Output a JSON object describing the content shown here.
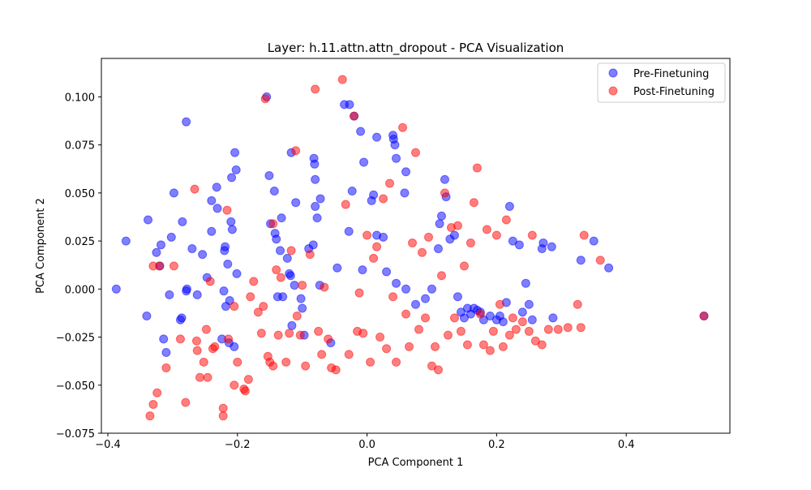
{
  "window": {
    "title": "Layer: h.11.attn.attn_dropout - PCA Visualization"
  },
  "chart_data": {
    "type": "scatter",
    "title": "Layer: h.11.attn.attn_dropout - PCA Visualization",
    "xlabel": "PCA Component 1",
    "ylabel": "PCA Component 2",
    "xlim": [
      -0.41,
      0.56
    ],
    "ylim": [
      -0.075,
      0.12
    ],
    "xticks": [
      -0.4,
      -0.2,
      0.0,
      0.2,
      0.4
    ],
    "xtick_labels": [
      "−0.4",
      "−0.2",
      "0.0",
      "0.2",
      "0.4"
    ],
    "yticks": [
      -0.075,
      -0.05,
      -0.025,
      0.0,
      0.025,
      0.05,
      0.075,
      0.1
    ],
    "ytick_labels": [
      "−0.075",
      "−0.050",
      "−0.025",
      "0.000",
      "0.025",
      "0.050",
      "0.075",
      "0.100"
    ],
    "grid": false,
    "legend_position": "top-right",
    "series": [
      {
        "name": "Pre-Finetuning",
        "color": "#0000ff",
        "alpha": 0.5,
        "points": [
          [
            -0.387,
            0.0
          ],
          [
            -0.372,
            0.025
          ],
          [
            -0.34,
            -0.014
          ],
          [
            -0.338,
            0.036
          ],
          [
            -0.325,
            0.019
          ],
          [
            -0.32,
            0.012
          ],
          [
            -0.318,
            0.023
          ],
          [
            -0.314,
            -0.026
          ],
          [
            -0.31,
            -0.033
          ],
          [
            -0.302,
            0.027
          ],
          [
            -0.298,
            0.05
          ],
          [
            -0.305,
            -0.003
          ],
          [
            -0.288,
            -0.016
          ],
          [
            -0.286,
            -0.015
          ],
          [
            -0.285,
            0.035
          ],
          [
            -0.279,
            0.087
          ],
          [
            -0.279,
            -0.001
          ],
          [
            -0.278,
            0.0
          ],
          [
            -0.27,
            0.021
          ],
          [
            -0.262,
            -0.003
          ],
          [
            -0.254,
            0.018
          ],
          [
            -0.247,
            0.006
          ],
          [
            -0.24,
            0.03
          ],
          [
            -0.24,
            0.046
          ],
          [
            -0.232,
            0.053
          ],
          [
            -0.231,
            0.042
          ],
          [
            -0.221,
            -0.001
          ],
          [
            -0.22,
            0.02
          ],
          [
            -0.219,
            0.022
          ],
          [
            -0.218,
            -0.009
          ],
          [
            -0.21,
            0.035
          ],
          [
            -0.209,
            0.058
          ],
          [
            -0.215,
            0.013
          ],
          [
            -0.212,
            -0.006
          ],
          [
            -0.204,
            0.071
          ],
          [
            -0.202,
            0.062
          ],
          [
            -0.201,
            0.008
          ],
          [
            -0.208,
            0.031
          ],
          [
            -0.224,
            -0.026
          ],
          [
            -0.213,
            -0.028
          ],
          [
            -0.205,
            -0.03
          ],
          [
            -0.155,
            0.1
          ],
          [
            -0.151,
            0.059
          ],
          [
            -0.149,
            0.034
          ],
          [
            -0.143,
            0.051
          ],
          [
            -0.142,
            0.029
          ],
          [
            -0.14,
            0.026
          ],
          [
            -0.134,
            0.02
          ],
          [
            -0.138,
            -0.004
          ],
          [
            -0.132,
            0.037
          ],
          [
            -0.13,
            -0.004
          ],
          [
            -0.123,
            0.016
          ],
          [
            -0.117,
            0.071
          ],
          [
            -0.12,
            0.008
          ],
          [
            -0.118,
            0.007
          ],
          [
            -0.116,
            -0.019
          ],
          [
            -0.11,
            0.045
          ],
          [
            -0.112,
            0.002
          ],
          [
            -0.102,
            -0.005
          ],
          [
            -0.1,
            -0.01
          ],
          [
            -0.097,
            -0.024
          ],
          [
            -0.09,
            0.021
          ],
          [
            -0.083,
            0.023
          ],
          [
            -0.082,
            0.068
          ],
          [
            -0.081,
            0.065
          ],
          [
            -0.08,
            0.057
          ],
          [
            -0.08,
            0.043
          ],
          [
            -0.077,
            0.037
          ],
          [
            -0.072,
            0.047
          ],
          [
            -0.073,
            0.002
          ],
          [
            -0.056,
            -0.028
          ],
          [
            -0.046,
            0.011
          ],
          [
            -0.035,
            0.096
          ],
          [
            -0.027,
            0.096
          ],
          [
            -0.02,
            0.09
          ],
          [
            -0.023,
            0.051
          ],
          [
            -0.028,
            0.03
          ],
          [
            -0.01,
            0.082
          ],
          [
            -0.005,
            0.066
          ],
          [
            -0.007,
            0.01
          ],
          [
            0.007,
            0.046
          ],
          [
            0.01,
            0.049
          ],
          [
            0.015,
            0.079
          ],
          [
            0.04,
            0.08
          ],
          [
            0.041,
            0.078
          ],
          [
            0.043,
            0.075
          ],
          [
            0.045,
            0.068
          ],
          [
            0.06,
            0.061
          ],
          [
            0.058,
            0.05
          ],
          [
            0.025,
            0.027
          ],
          [
            0.015,
            0.028
          ],
          [
            0.03,
            0.009
          ],
          [
            0.045,
            0.003
          ],
          [
            0.06,
            0.0
          ],
          [
            0.075,
            -0.008
          ],
          [
            0.09,
            -0.005
          ],
          [
            0.1,
            0.0
          ],
          [
            0.11,
            0.021
          ],
          [
            0.112,
            0.034
          ],
          [
            0.115,
            0.038
          ],
          [
            0.12,
            0.057
          ],
          [
            0.122,
            0.048
          ],
          [
            0.128,
            0.026
          ],
          [
            0.135,
            0.028
          ],
          [
            0.14,
            -0.004
          ],
          [
            0.145,
            -0.012
          ],
          [
            0.15,
            -0.015
          ],
          [
            0.155,
            -0.01
          ],
          [
            0.16,
            -0.013
          ],
          [
            0.165,
            -0.01
          ],
          [
            0.17,
            -0.011
          ],
          [
            0.175,
            -0.012
          ],
          [
            0.18,
            -0.016
          ],
          [
            0.19,
            -0.014
          ],
          [
            0.2,
            -0.016
          ],
          [
            0.205,
            -0.014
          ],
          [
            0.21,
            -0.017
          ],
          [
            0.215,
            -0.007
          ],
          [
            0.22,
            0.043
          ],
          [
            0.225,
            0.025
          ],
          [
            0.235,
            0.023
          ],
          [
            0.24,
            -0.012
          ],
          [
            0.245,
            0.003
          ],
          [
            0.25,
            -0.008
          ],
          [
            0.255,
            -0.016
          ],
          [
            0.27,
            0.021
          ],
          [
            0.272,
            0.024
          ],
          [
            0.285,
            0.022
          ],
          [
            0.287,
            -0.015
          ],
          [
            0.33,
            0.015
          ],
          [
            0.35,
            0.025
          ],
          [
            0.373,
            0.011
          ],
          [
            0.52,
            -0.014
          ]
        ]
      },
      {
        "name": "Post-Finetuning",
        "color": "#ff0000",
        "alpha": 0.5,
        "points": [
          [
            -0.335,
            -0.066
          ],
          [
            -0.33,
            -0.06
          ],
          [
            -0.324,
            -0.054
          ],
          [
            -0.32,
            0.012
          ],
          [
            -0.33,
            0.012
          ],
          [
            -0.31,
            -0.041
          ],
          [
            -0.298,
            0.012
          ],
          [
            -0.288,
            -0.026
          ],
          [
            -0.28,
            -0.059
          ],
          [
            -0.266,
            0.052
          ],
          [
            -0.263,
            -0.027
          ],
          [
            -0.262,
            -0.032
          ],
          [
            -0.258,
            -0.046
          ],
          [
            -0.252,
            -0.038
          ],
          [
            -0.248,
            -0.021
          ],
          [
            -0.246,
            -0.046
          ],
          [
            -0.242,
            0.004
          ],
          [
            -0.238,
            -0.031
          ],
          [
            -0.235,
            -0.03
          ],
          [
            -0.222,
            -0.062
          ],
          [
            -0.222,
            -0.066
          ],
          [
            -0.216,
            0.041
          ],
          [
            -0.214,
            -0.026
          ],
          [
            -0.205,
            -0.009
          ],
          [
            -0.205,
            -0.05
          ],
          [
            -0.2,
            -0.038
          ],
          [
            -0.19,
            -0.052
          ],
          [
            -0.188,
            -0.053
          ],
          [
            -0.183,
            -0.047
          ],
          [
            -0.18,
            -0.004
          ],
          [
            -0.175,
            0.004
          ],
          [
            -0.168,
            -0.012
          ],
          [
            -0.163,
            -0.023
          ],
          [
            -0.16,
            -0.009
          ],
          [
            -0.157,
            0.099
          ],
          [
            -0.153,
            -0.035
          ],
          [
            -0.15,
            -0.038
          ],
          [
            -0.145,
            0.034
          ],
          [
            -0.145,
            -0.04
          ],
          [
            -0.14,
            0.01
          ],
          [
            -0.137,
            -0.024
          ],
          [
            -0.133,
            0.006
          ],
          [
            -0.125,
            -0.038
          ],
          [
            -0.12,
            -0.023
          ],
          [
            -0.117,
            0.02
          ],
          [
            -0.11,
            0.072
          ],
          [
            -0.108,
            -0.014
          ],
          [
            -0.103,
            -0.024
          ],
          [
            -0.1,
            0.002
          ],
          [
            -0.095,
            -0.04
          ],
          [
            -0.088,
            0.018
          ],
          [
            -0.08,
            0.104
          ],
          [
            -0.075,
            -0.022
          ],
          [
            -0.07,
            -0.034
          ],
          [
            -0.066,
            0.001
          ],
          [
            -0.06,
            -0.026
          ],
          [
            -0.055,
            -0.041
          ],
          [
            -0.048,
            -0.042
          ],
          [
            -0.038,
            0.109
          ],
          [
            -0.033,
            0.044
          ],
          [
            -0.028,
            -0.034
          ],
          [
            -0.02,
            0.09
          ],
          [
            -0.015,
            -0.022
          ],
          [
            -0.012,
            -0.002
          ],
          [
            -0.006,
            -0.023
          ],
          [
            0.0,
            0.028
          ],
          [
            0.005,
            -0.038
          ],
          [
            0.01,
            0.016
          ],
          [
            0.015,
            0.022
          ],
          [
            0.02,
            -0.025
          ],
          [
            0.025,
            0.047
          ],
          [
            0.03,
            -0.031
          ],
          [
            0.035,
            0.055
          ],
          [
            0.04,
            -0.004
          ],
          [
            0.045,
            -0.038
          ],
          [
            0.055,
            0.084
          ],
          [
            0.06,
            -0.013
          ],
          [
            0.065,
            -0.03
          ],
          [
            0.07,
            0.024
          ],
          [
            0.075,
            0.071
          ],
          [
            0.08,
            -0.021
          ],
          [
            0.085,
            0.019
          ],
          [
            0.09,
            -0.015
          ],
          [
            0.095,
            0.027
          ],
          [
            0.1,
            -0.04
          ],
          [
            0.105,
            -0.03
          ],
          [
            0.11,
            -0.042
          ],
          [
            0.115,
            0.007
          ],
          [
            0.12,
            0.05
          ],
          [
            0.125,
            -0.024
          ],
          [
            0.13,
            0.032
          ],
          [
            0.135,
            -0.015
          ],
          [
            0.14,
            0.033
          ],
          [
            0.145,
            -0.022
          ],
          [
            0.15,
            0.012
          ],
          [
            0.155,
            -0.029
          ],
          [
            0.16,
            0.024
          ],
          [
            0.165,
            0.045
          ],
          [
            0.17,
            0.063
          ],
          [
            0.175,
            -0.013
          ],
          [
            0.18,
            -0.029
          ],
          [
            0.185,
            0.031
          ],
          [
            0.19,
            -0.032
          ],
          [
            0.195,
            -0.022
          ],
          [
            0.2,
            0.028
          ],
          [
            0.205,
            -0.008
          ],
          [
            0.21,
            -0.03
          ],
          [
            0.215,
            0.036
          ],
          [
            0.22,
            -0.024
          ],
          [
            0.225,
            -0.015
          ],
          [
            0.23,
            -0.021
          ],
          [
            0.24,
            -0.017
          ],
          [
            0.25,
            -0.022
          ],
          [
            0.255,
            0.028
          ],
          [
            0.26,
            -0.027
          ],
          [
            0.27,
            -0.029
          ],
          [
            0.28,
            -0.021
          ],
          [
            0.295,
            -0.021
          ],
          [
            0.31,
            -0.02
          ],
          [
            0.325,
            -0.008
          ],
          [
            0.33,
            -0.02
          ],
          [
            0.335,
            0.028
          ],
          [
            0.36,
            0.015
          ],
          [
            0.52,
            -0.014
          ]
        ]
      }
    ]
  }
}
